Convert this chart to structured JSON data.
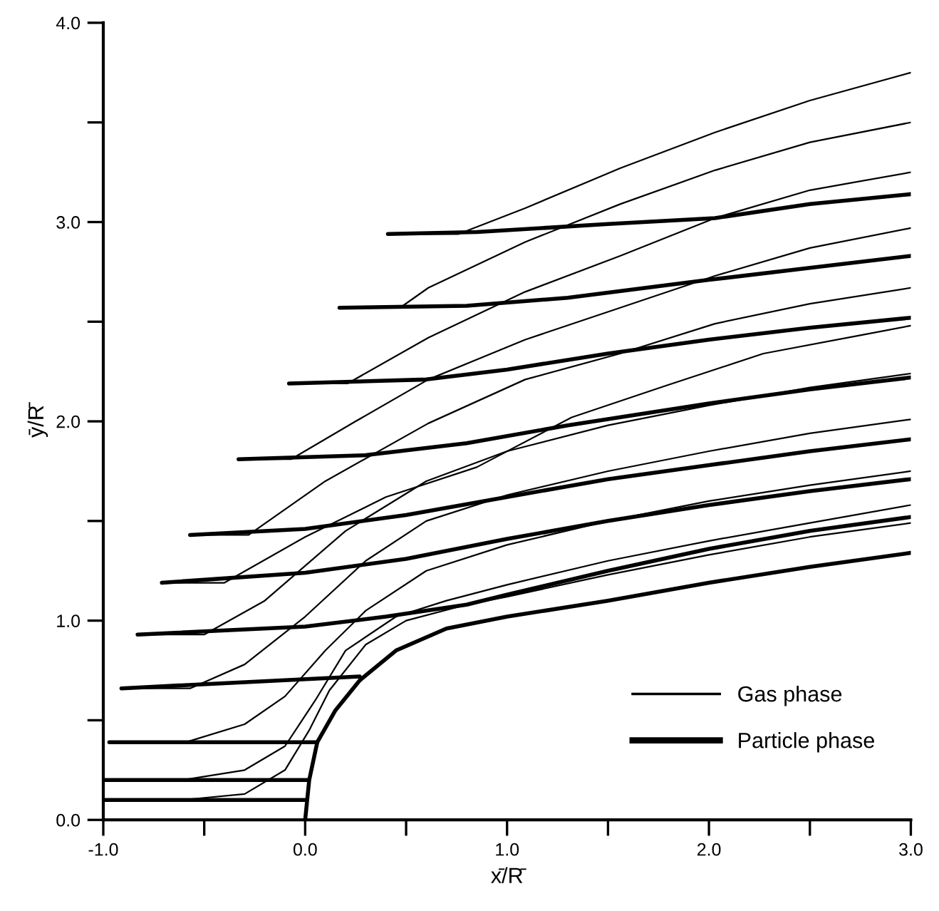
{
  "chart_data": {
    "type": "line",
    "xlabel": "x̄/R̄",
    "ylabel": "ȳ/R̄",
    "xlim": [
      -1,
      3
    ],
    "ylim": [
      0,
      4
    ],
    "xticks": [
      {
        "value": -1,
        "label": "-1.0"
      },
      {
        "value": -0.5,
        "label": null
      },
      {
        "value": 0,
        "label": "0.0"
      },
      {
        "value": 0.5,
        "label": null
      },
      {
        "value": 1,
        "label": "1.0"
      },
      {
        "value": 1.5,
        "label": null
      },
      {
        "value": 2,
        "label": "2.0"
      },
      {
        "value": 2.5,
        "label": null
      },
      {
        "value": 3,
        "label": "3.0"
      }
    ],
    "yticks": [
      {
        "value": 0,
        "label": "0.0"
      },
      {
        "value": 0.5,
        "label": null
      },
      {
        "value": 1,
        "label": "1.0"
      },
      {
        "value": 1.5,
        "label": null
      },
      {
        "value": 2,
        "label": "2.0"
      },
      {
        "value": 2.5,
        "label": null
      },
      {
        "value": 3,
        "label": "3.0"
      },
      {
        "value": 3.5,
        "label": null
      },
      {
        "value": 4,
        "label": "4.0"
      }
    ],
    "grid": false,
    "legend": "bottom right",
    "marker": "none",
    "line_style": "solid",
    "series": [
      {
        "name": "Gas phase",
        "color": "#000000",
        "x": [
          0.41,
          0.76,
          1.09,
          1.56,
          2.03,
          2.5,
          3.0
        ],
        "values": [
          2.94,
          2.94,
          3.07,
          3.27,
          3.45,
          3.61,
          3.75
        ]
      },
      {
        "color": "#000000",
        "x": [
          0.17,
          0.47,
          0.61,
          1.09,
          1.56,
          2.03,
          2.5,
          3.0
        ],
        "values": [
          2.57,
          2.57,
          2.67,
          2.9,
          3.09,
          3.26,
          3.4,
          3.5
        ]
      },
      {
        "color": "#000000",
        "x": [
          -0.08,
          0.21,
          0.61,
          1.09,
          1.56,
          2.03,
          2.5,
          3.0
        ],
        "values": [
          2.19,
          2.19,
          2.42,
          2.65,
          2.83,
          3.02,
          3.16,
          3.25
        ]
      },
      {
        "color": "#000000",
        "x": [
          -0.33,
          -0.07,
          0.25,
          0.61,
          1.09,
          1.56,
          2.03,
          2.5,
          3.0
        ],
        "values": [
          1.81,
          1.81,
          2.0,
          2.21,
          2.41,
          2.57,
          2.73,
          2.87,
          2.97
        ]
      },
      {
        "color": "#000000",
        "x": [
          -0.57,
          -0.28,
          0.1,
          0.61,
          1.09,
          1.56,
          2.03,
          2.5,
          3.0
        ],
        "values": [
          1.43,
          1.43,
          1.7,
          1.99,
          2.21,
          2.34,
          2.49,
          2.59,
          2.67
        ]
      },
      {
        "color": "#000000",
        "x": [
          -0.71,
          -0.4,
          0.0,
          0.4,
          0.85,
          1.32,
          1.79,
          2.27,
          2.74,
          3.0
        ],
        "values": [
          1.19,
          1.19,
          1.42,
          1.62,
          1.77,
          2.02,
          2.18,
          2.34,
          2.43,
          2.48
        ]
      },
      {
        "color": "#000000",
        "x": [
          -0.83,
          -0.5,
          -0.2,
          0.2,
          0.6,
          1.0,
          1.5,
          2.0,
          2.5,
          3.0
        ],
        "values": [
          0.93,
          0.93,
          1.1,
          1.45,
          1.7,
          1.85,
          1.98,
          2.08,
          2.17,
          2.24
        ]
      },
      {
        "color": "#000000",
        "x": [
          -0.91,
          -0.57,
          -0.3,
          0.0,
          0.3,
          0.6,
          1.0,
          1.5,
          2.0,
          2.5,
          3.0
        ],
        "values": [
          0.66,
          0.66,
          0.78,
          1.02,
          1.3,
          1.5,
          1.63,
          1.75,
          1.85,
          1.94,
          2.01
        ]
      },
      {
        "color": "#000000",
        "x": [
          -0.97,
          -0.59,
          -0.3,
          -0.1,
          0.1,
          0.3,
          0.6,
          1.0,
          1.5,
          2.0,
          2.5,
          3.0
        ],
        "values": [
          0.39,
          0.39,
          0.48,
          0.62,
          0.85,
          1.05,
          1.25,
          1.38,
          1.5,
          1.6,
          1.68,
          1.75
        ]
      },
      {
        "color": "#000000",
        "x": [
          -1.0,
          -0.61,
          -0.3,
          -0.1,
          0.05,
          0.2,
          0.45,
          0.7,
          1.0,
          1.5,
          2.0,
          2.5,
          3.0
        ],
        "values": [
          0.2,
          0.2,
          0.25,
          0.37,
          0.6,
          0.85,
          1.02,
          1.1,
          1.18,
          1.3,
          1.4,
          1.49,
          1.58
        ]
      },
      {
        "color": "#000000",
        "x": [
          -1.0,
          -0.61,
          -0.3,
          -0.1,
          0.02,
          0.12,
          0.3,
          0.5,
          0.8,
          1.0,
          1.5,
          2.0,
          2.5,
          3.0
        ],
        "values": [
          0.1,
          0.1,
          0.13,
          0.25,
          0.45,
          0.65,
          0.88,
          1.0,
          1.08,
          1.12,
          1.23,
          1.33,
          1.42,
          1.49
        ]
      },
      {
        "name": "Particle phase",
        "color": "#000000",
        "x": [
          0.41,
          0.85,
          1.5,
          2.03,
          2.5,
          3.0
        ],
        "values": [
          2.94,
          2.95,
          2.99,
          3.02,
          3.09,
          3.14
        ]
      },
      {
        "color": "#000000",
        "x": [
          0.17,
          0.8,
          1.3,
          2.0,
          2.5,
          3.0
        ],
        "values": [
          2.57,
          2.58,
          2.62,
          2.71,
          2.77,
          2.83
        ]
      },
      {
        "color": "#000000",
        "x": [
          -0.08,
          0.6,
          1.0,
          1.5,
          2.0,
          2.5,
          3.0
        ],
        "values": [
          2.19,
          2.21,
          2.26,
          2.34,
          2.41,
          2.47,
          2.52
        ]
      },
      {
        "color": "#000000",
        "x": [
          -0.33,
          0.3,
          0.8,
          1.3,
          2.0,
          2.5,
          3.0
        ],
        "values": [
          1.81,
          1.83,
          1.89,
          1.98,
          2.09,
          2.16,
          2.22
        ]
      },
      {
        "color": "#000000",
        "x": [
          -0.57,
          0.0,
          0.5,
          1.0,
          1.5,
          2.0,
          2.5,
          3.0
        ],
        "values": [
          1.43,
          1.46,
          1.53,
          1.62,
          1.71,
          1.78,
          1.85,
          1.91
        ]
      },
      {
        "color": "#000000",
        "x": [
          -0.71,
          0.0,
          0.5,
          1.0,
          1.5,
          2.0,
          2.5,
          3.0
        ],
        "values": [
          1.19,
          1.24,
          1.31,
          1.41,
          1.5,
          1.58,
          1.65,
          1.71
        ]
      },
      {
        "color": "#000000",
        "x": [
          -0.83,
          0.0,
          0.4,
          0.8,
          1.0,
          1.5,
          2.0,
          2.5,
          3.0
        ],
        "values": [
          0.93,
          0.97,
          1.02,
          1.08,
          1.13,
          1.25,
          1.36,
          1.45,
          1.52
        ]
      },
      {
        "color": "#000000",
        "x": [
          -0.91,
          0.27
        ],
        "values": [
          0.66,
          0.72
        ]
      },
      {
        "color": "#000000",
        "x": [
          -0.97,
          0.06
        ],
        "values": [
          0.39,
          0.39
        ]
      },
      {
        "color": "#000000",
        "x": [
          -1.0,
          0.01
        ],
        "values": [
          0.2,
          0.2
        ]
      },
      {
        "color": "#000000",
        "x": [
          -1.0,
          0.0
        ],
        "values": [
          0.1,
          0.1
        ]
      },
      {
        "color": "#000000",
        "x": [
          0.0,
          0.02,
          0.06,
          0.15,
          0.27,
          0.45,
          0.7,
          1.0,
          1.5,
          2.0,
          2.5,
          3.0
        ],
        "values": [
          0.0,
          0.2,
          0.39,
          0.55,
          0.7,
          0.85,
          0.96,
          1.02,
          1.1,
          1.19,
          1.27,
          1.34
        ]
      }
    ]
  }
}
